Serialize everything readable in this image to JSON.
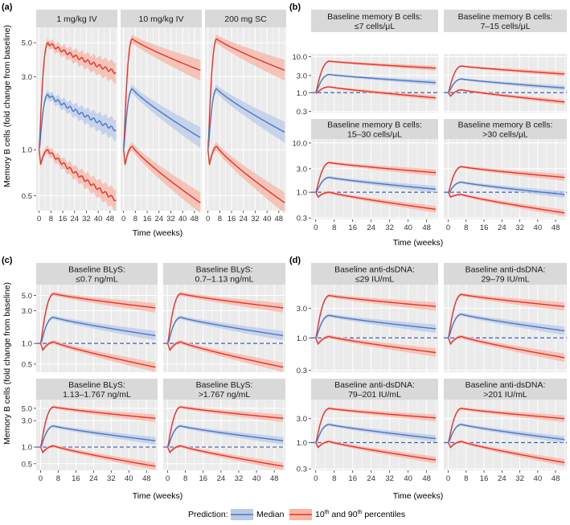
{
  "chart_data": [
    {
      "panel_letter": "(a)",
      "type": "line",
      "ylabel": "Memory B cells (fold change from baseline)",
      "xlabel": "Time (weeks)",
      "y_scale": "log",
      "ylim": [
        0.4,
        6.3
      ],
      "y_ticks": [
        {
          "v": 0.5,
          "label": "0.5"
        },
        {
          "v": 1.0,
          "label": "1.0"
        },
        {
          "v": 3.0,
          "label": "3.0"
        },
        {
          "v": 5.0,
          "label": "5.0"
        }
      ],
      "x_ticks": [
        {
          "v": 0,
          "label": "0"
        },
        {
          "v": 8,
          "label": "8"
        },
        {
          "v": 16,
          "label": "16"
        },
        {
          "v": 24,
          "label": "24"
        },
        {
          "v": 32,
          "label": "32"
        },
        {
          "v": 40,
          "label": "40"
        },
        {
          "v": 48,
          "label": "48"
        }
      ],
      "xlim": [
        -2,
        53
      ],
      "reference_line": null,
      "facets": [
        {
          "title_lines": [
            "1 mg/kg IV"
          ],
          "p90": {
            "peak": 5.0,
            "end": 3.2
          },
          "median": {
            "peak": 2.3,
            "end": 1.35
          },
          "p10": {
            "peak": 1.0,
            "end": 0.47
          },
          "wiggle": true
        },
        {
          "title_lines": [
            "10 mg/kg IV"
          ],
          "p90": {
            "peak": 5.3,
            "end": 3.3
          },
          "median": {
            "peak": 2.5,
            "end": 1.2
          },
          "p10": {
            "peak": 1.05,
            "end": 0.45
          }
        },
        {
          "title_lines": [
            "200 mg SC"
          ],
          "p90": {
            "peak": 5.3,
            "end": 3.3
          },
          "median": {
            "peak": 2.5,
            "end": 1.3
          },
          "p10": {
            "peak": 1.05,
            "end": 0.45
          }
        }
      ]
    },
    {
      "panel_letter": "(b)",
      "type": "line",
      "ylabel": "",
      "xlabel": "Time (weeks)",
      "y_scale": "log",
      "ylim": [
        0.28,
        12
      ],
      "y_ticks": [
        {
          "v": 0.3,
          "label": "0.3"
        },
        {
          "v": 1.0,
          "label": "1.0"
        },
        {
          "v": 3.0,
          "label": "3.0"
        },
        {
          "v": 10.0,
          "label": "10.0"
        }
      ],
      "x_ticks": [
        {
          "v": 0,
          "label": "0"
        },
        {
          "v": 8,
          "label": "8"
        },
        {
          "v": 16,
          "label": "16"
        },
        {
          "v": 24,
          "label": "24"
        },
        {
          "v": 32,
          "label": "32"
        },
        {
          "v": 40,
          "label": "40"
        },
        {
          "v": 48,
          "label": "48"
        }
      ],
      "xlim": [
        -2,
        53
      ],
      "reference_line": 1.0,
      "facets": [
        {
          "title_lines": [
            "Baseline memory B cells:",
            "≤7 cells/μL"
          ],
          "p90": {
            "peak": 7.5,
            "end": 4.8
          },
          "median": {
            "peak": 3.2,
            "end": 1.9
          },
          "p10": {
            "peak": 1.45,
            "end": 0.72
          }
        },
        {
          "title_lines": [
            "Baseline memory B cells:",
            "7–15 cells/μL"
          ],
          "p90": {
            "peak": 5.5,
            "end": 3.3
          },
          "median": {
            "peak": 2.4,
            "end": 1.35
          },
          "p10": {
            "peak": 1.2,
            "end": 0.55
          }
        },
        {
          "title_lines": [
            "Baseline memory B cells:",
            "15–30 cells/μL"
          ],
          "p90": {
            "peak": 4.0,
            "end": 2.5
          },
          "median": {
            "peak": 2.0,
            "end": 1.15
          },
          "p10": {
            "peak": 1.0,
            "end": 0.45
          }
        },
        {
          "title_lines": [
            "Baseline memory B cells:",
            ">30 cells/μL"
          ],
          "p90": {
            "peak": 3.3,
            "end": 2.0
          },
          "median": {
            "peak": 1.6,
            "end": 0.9
          },
          "p10": {
            "peak": 0.9,
            "end": 0.38
          }
        }
      ]
    },
    {
      "panel_letter": "(c)",
      "type": "line",
      "ylabel": "Memory B cells (fold change from baseline)",
      "xlabel": "Time (weeks)",
      "y_scale": "log",
      "ylim": [
        0.38,
        7.2
      ],
      "y_ticks": [
        {
          "v": 0.5,
          "label": "0.5"
        },
        {
          "v": 1.0,
          "label": "1.0"
        },
        {
          "v": 3.0,
          "label": "3.0"
        },
        {
          "v": 5.0,
          "label": "5.0"
        }
      ],
      "x_ticks": [
        {
          "v": 0,
          "label": "0"
        },
        {
          "v": 8,
          "label": "8"
        },
        {
          "v": 16,
          "label": "16"
        },
        {
          "v": 24,
          "label": "24"
        },
        {
          "v": 32,
          "label": "32"
        },
        {
          "v": 40,
          "label": "40"
        },
        {
          "v": 48,
          "label": "48"
        }
      ],
      "xlim": [
        -2,
        53
      ],
      "reference_line": 1.0,
      "facets": [
        {
          "title_lines": [
            "Baseline BLyS:",
            "≤0.7 ng/mL"
          ],
          "p90": {
            "peak": 5.3,
            "end": 3.3
          },
          "median": {
            "peak": 2.4,
            "end": 1.3
          },
          "p10": {
            "peak": 1.05,
            "end": 0.45
          }
        },
        {
          "title_lines": [
            "Baseline BLyS:",
            "0.7–1.13 ng/mL"
          ],
          "p90": {
            "peak": 5.3,
            "end": 3.3
          },
          "median": {
            "peak": 2.4,
            "end": 1.3
          },
          "p10": {
            "peak": 1.05,
            "end": 0.45
          }
        },
        {
          "title_lines": [
            "Baseline BLyS:",
            "1.13–1.767 ng/mL"
          ],
          "p90": {
            "peak": 5.3,
            "end": 3.3
          },
          "median": {
            "peak": 2.4,
            "end": 1.3
          },
          "p10": {
            "peak": 1.05,
            "end": 0.45
          }
        },
        {
          "title_lines": [
            "Baseline BLyS:",
            ">1.767 ng/mL"
          ],
          "p90": {
            "peak": 5.3,
            "end": 3.3
          },
          "median": {
            "peak": 2.4,
            "end": 1.3
          },
          "p10": {
            "peak": 1.05,
            "end": 0.45
          }
        }
      ]
    },
    {
      "panel_letter": "(d)",
      "type": "line",
      "ylabel": "",
      "xlabel": "Time (weeks)",
      "y_scale": "log",
      "ylim": [
        0.28,
        7.2
      ],
      "y_ticks": [
        {
          "v": 0.3,
          "label": "0.3"
        },
        {
          "v": 1.0,
          "label": "1.0"
        },
        {
          "v": 3.0,
          "label": "3.0"
        }
      ],
      "x_ticks": [
        {
          "v": 0,
          "label": "0"
        },
        {
          "v": 8,
          "label": "8"
        },
        {
          "v": 16,
          "label": "16"
        },
        {
          "v": 24,
          "label": "24"
        },
        {
          "v": 32,
          "label": "32"
        },
        {
          "v": 40,
          "label": "40"
        },
        {
          "v": 48,
          "label": "48"
        }
      ],
      "xlim": [
        -2,
        53
      ],
      "reference_line": 1.0,
      "facets": [
        {
          "title_lines": [
            "Baseline anti-dsDNA:",
            "≤29 IU/mL"
          ],
          "p90": {
            "peak": 4.8,
            "end": 3.2
          },
          "median": {
            "peak": 2.3,
            "end": 1.4
          },
          "p10": {
            "peak": 1.05,
            "end": 0.58
          }
        },
        {
          "title_lines": [
            "Baseline anti-dsDNA:",
            "29–79 IU/mL"
          ],
          "p90": {
            "peak": 5.0,
            "end": 3.2
          },
          "median": {
            "peak": 2.4,
            "end": 1.3
          },
          "p10": {
            "peak": 1.05,
            "end": 0.48
          }
        },
        {
          "title_lines": [
            "Baseline anti-dsDNA:",
            "79–201 IU/mL"
          ],
          "p90": {
            "peak": 4.8,
            "end": 3.1
          },
          "median": {
            "peak": 2.3,
            "end": 1.2
          },
          "p10": {
            "peak": 1.05,
            "end": 0.45
          }
        },
        {
          "title_lines": [
            "Baseline anti-dsDNA:",
            ">201 IU/mL"
          ],
          "p90": {
            "peak": 4.8,
            "end": 3.0
          },
          "median": {
            "peak": 2.3,
            "end": 1.15
          },
          "p10": {
            "peak": 1.05,
            "end": 0.4
          }
        }
      ]
    }
  ],
  "legend": {
    "title": "Prediction:",
    "items": [
      {
        "label": "Median",
        "color": "#4a78c2",
        "fill": "#b9c9e8"
      },
      {
        "label": "10th and 90th percentiles",
        "color": "#e8312a",
        "fill": "#f5b6a6"
      }
    ]
  },
  "colors": {
    "panel_bg": "#ebebeb",
    "strip_bg": "#d9d9d9",
    "grid": "#ffffff",
    "reference": "#3a5fbf"
  }
}
